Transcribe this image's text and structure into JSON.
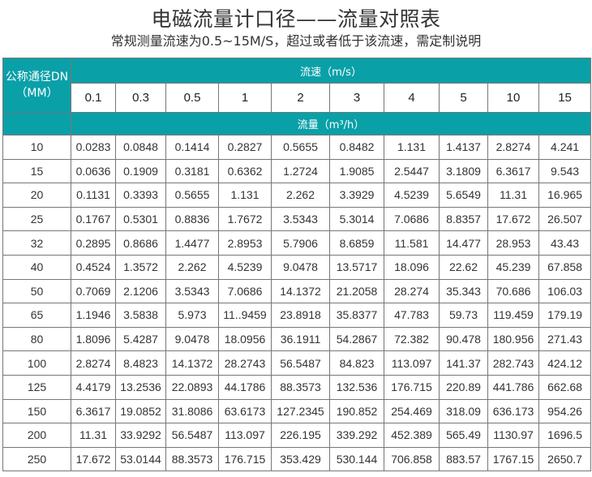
{
  "title": "电磁流量计口径——流量对照表",
  "subtitle": "常规测量流速为0.5~15M/S，超过或者低于该流速，需定制说明",
  "colors": {
    "header_teal": "#0aa0a8",
    "border": "#777777"
  },
  "table": {
    "dn_header_line1": "公称通径DN",
    "dn_header_line2": "（MM）",
    "velocity_header": "流速（m/s）",
    "flow_header": "流量（m³/h）",
    "velocities": [
      "0.1",
      "0.3",
      "0.5",
      "1",
      "2",
      "3",
      "4",
      "5",
      "10",
      "15"
    ],
    "rows": [
      {
        "dn": "10",
        "values": [
          "0.0283",
          "0.0848",
          "0.1414",
          "0.2827",
          "0.5655",
          "0.8482",
          "1.131",
          "1.4137",
          "2.8274",
          "4.241"
        ]
      },
      {
        "dn": "15",
        "values": [
          "0.0636",
          "0.1909",
          "0.3181",
          "0.6362",
          "1.2724",
          "1.9085",
          "2.5447",
          "3.1809",
          "6.3617",
          "9.543"
        ]
      },
      {
        "dn": "20",
        "values": [
          "0.1131",
          "0.3393",
          "0.5655",
          "1.131",
          "2.262",
          "3.3929",
          "4.5239",
          "5.6549",
          "11.31",
          "16.965"
        ]
      },
      {
        "dn": "25",
        "values": [
          "0.1767",
          "0.5301",
          "0.8836",
          "1.7672",
          "3.5343",
          "5.3014",
          "7.0686",
          "8.8357",
          "17.672",
          "26.507"
        ]
      },
      {
        "dn": "32",
        "values": [
          "0.2895",
          "0.8686",
          "1.4477",
          "2.8953",
          "5.7906",
          "8.6859",
          "11.581",
          "14.477",
          "28.953",
          "43.43"
        ]
      },
      {
        "dn": "40",
        "values": [
          "0.4524",
          "1.3572",
          "2.262",
          "4.5239",
          "9.0478",
          "13.5717",
          "18.096",
          "22.62",
          "45.239",
          "67.858"
        ]
      },
      {
        "dn": "50",
        "values": [
          "0.7069",
          "2.1206",
          "3.5343",
          "7.0686",
          "14.1372",
          "21.2058",
          "28.274",
          "35.343",
          "70.686",
          "106.03"
        ]
      },
      {
        "dn": "65",
        "values": [
          "1.1946",
          "3.5838",
          "5.973",
          "11..9459",
          "23.8918",
          "35.8377",
          "47.783",
          "59.73",
          "119.459",
          "179.19"
        ]
      },
      {
        "dn": "80",
        "values": [
          "1.8096",
          "5.4287",
          "9.0478",
          "18.0956",
          "36.1911",
          "54.2867",
          "72.382",
          "90.478",
          "180.956",
          "271.43"
        ]
      },
      {
        "dn": "100",
        "values": [
          "2.8274",
          "8.4823",
          "14.1372",
          "28.2743",
          "56.5487",
          "84.823",
          "113.097",
          "141.37",
          "282.743",
          "424.12"
        ]
      },
      {
        "dn": "125",
        "values": [
          "4.4179",
          "13.2536",
          "22.0893",
          "44.1786",
          "88.3573",
          "132.536",
          "176.715",
          "220.89",
          "441.786",
          "662.68"
        ]
      },
      {
        "dn": "150",
        "values": [
          "6.3617",
          "19.0852",
          "31.8086",
          "63.6173",
          "127.2345",
          "190.852",
          "254.469",
          "318.09",
          "636.173",
          "954.26"
        ]
      },
      {
        "dn": "200",
        "values": [
          "11.31",
          "33.9292",
          "56.5487",
          "113.097",
          "226.195",
          "339.292",
          "452.389",
          "565.49",
          "1130.97",
          "1696.5"
        ]
      },
      {
        "dn": "250",
        "values": [
          "17.672",
          "53.0144",
          "88.3573",
          "176.715",
          "353.429",
          "530.144",
          "706.858",
          "883.57",
          "1767.15",
          "2650.7"
        ]
      }
    ]
  }
}
